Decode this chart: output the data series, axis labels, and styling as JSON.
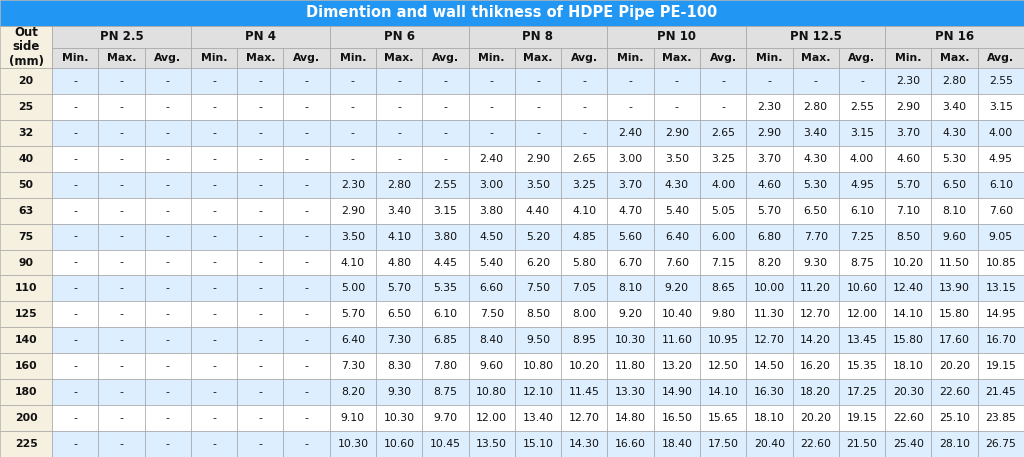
{
  "title": "Dimention and wall thikness of HDPE Pipe PE-100",
  "pn_labels": [
    "PN 2.5",
    "PN 4",
    "PN 6",
    "PN 8",
    "PN 10",
    "PN 12.5",
    "PN 16"
  ],
  "sub_cols": [
    "Min.",
    "Max.",
    "Avg."
  ],
  "rows": [
    [
      20,
      "-",
      "-",
      "-",
      "-",
      "-",
      "-",
      "-",
      "-",
      "-",
      "-",
      "-",
      "-",
      "-",
      "-",
      "-",
      "-",
      "-",
      "-",
      "2.30",
      "2.80",
      "2.55"
    ],
    [
      25,
      "-",
      "-",
      "-",
      "-",
      "-",
      "-",
      "-",
      "-",
      "-",
      "-",
      "-",
      "-",
      "-",
      "-",
      "-",
      "2.30",
      "2.80",
      "2.55",
      "2.90",
      "3.40",
      "3.15"
    ],
    [
      32,
      "-",
      "-",
      "-",
      "-",
      "-",
      "-",
      "-",
      "-",
      "-",
      "-",
      "-",
      "-",
      "2.40",
      "2.90",
      "2.65",
      "2.90",
      "3.40",
      "3.15",
      "3.70",
      "4.30",
      "4.00"
    ],
    [
      40,
      "-",
      "-",
      "-",
      "-",
      "-",
      "-",
      "-",
      "-",
      "-",
      "2.40",
      "2.90",
      "2.65",
      "3.00",
      "3.50",
      "3.25",
      "3.70",
      "4.30",
      "4.00",
      "4.60",
      "5.30",
      "4.95"
    ],
    [
      50,
      "-",
      "-",
      "-",
      "-",
      "-",
      "-",
      "2.30",
      "2.80",
      "2.55",
      "3.00",
      "3.50",
      "3.25",
      "3.70",
      "4.30",
      "4.00",
      "4.60",
      "5.30",
      "4.95",
      "5.70",
      "6.50",
      "6.10"
    ],
    [
      63,
      "-",
      "-",
      "-",
      "-",
      "-",
      "-",
      "2.90",
      "3.40",
      "3.15",
      "3.80",
      "4.40",
      "4.10",
      "4.70",
      "5.40",
      "5.05",
      "5.70",
      "6.50",
      "6.10",
      "7.10",
      "8.10",
      "7.60"
    ],
    [
      75,
      "-",
      "-",
      "-",
      "-",
      "-",
      "-",
      "3.50",
      "4.10",
      "3.80",
      "4.50",
      "5.20",
      "4.85",
      "5.60",
      "6.40",
      "6.00",
      "6.80",
      "7.70",
      "7.25",
      "8.50",
      "9.60",
      "9.05"
    ],
    [
      90,
      "-",
      "-",
      "-",
      "-",
      "-",
      "-",
      "4.10",
      "4.80",
      "4.45",
      "5.40",
      "6.20",
      "5.80",
      "6.70",
      "7.60",
      "7.15",
      "8.20",
      "9.30",
      "8.75",
      "10.20",
      "11.50",
      "10.85"
    ],
    [
      110,
      "-",
      "-",
      "-",
      "-",
      "-",
      "-",
      "5.00",
      "5.70",
      "5.35",
      "6.60",
      "7.50",
      "7.05",
      "8.10",
      "9.20",
      "8.65",
      "10.00",
      "11.20",
      "10.60",
      "12.40",
      "13.90",
      "13.15"
    ],
    [
      125,
      "-",
      "-",
      "-",
      "-",
      "-",
      "-",
      "5.70",
      "6.50",
      "6.10",
      "7.50",
      "8.50",
      "8.00",
      "9.20",
      "10.40",
      "9.80",
      "11.30",
      "12.70",
      "12.00",
      "14.10",
      "15.80",
      "14.95"
    ],
    [
      140,
      "-",
      "-",
      "-",
      "-",
      "-",
      "-",
      "6.40",
      "7.30",
      "6.85",
      "8.40",
      "9.50",
      "8.95",
      "10.30",
      "11.60",
      "10.95",
      "12.70",
      "14.20",
      "13.45",
      "15.80",
      "17.60",
      "16.70"
    ],
    [
      160,
      "-",
      "-",
      "-",
      "-",
      "-",
      "-",
      "7.30",
      "8.30",
      "7.80",
      "9.60",
      "10.80",
      "10.20",
      "11.80",
      "13.20",
      "12.50",
      "14.50",
      "16.20",
      "15.35",
      "18.10",
      "20.20",
      "19.15"
    ],
    [
      180,
      "-",
      "-",
      "-",
      "-",
      "-",
      "-",
      "8.20",
      "9.30",
      "8.75",
      "10.80",
      "12.10",
      "11.45",
      "13.30",
      "14.90",
      "14.10",
      "16.30",
      "18.20",
      "17.25",
      "20.30",
      "22.60",
      "21.45"
    ],
    [
      200,
      "-",
      "-",
      "-",
      "-",
      "-",
      "-",
      "9.10",
      "10.30",
      "9.70",
      "12.00",
      "13.40",
      "12.70",
      "14.80",
      "16.50",
      "15.65",
      "18.10",
      "20.20",
      "19.15",
      "22.60",
      "25.10",
      "23.85"
    ],
    [
      225,
      "-",
      "-",
      "-",
      "-",
      "-",
      "-",
      "10.30",
      "10.60",
      "10.45",
      "13.50",
      "15.10",
      "14.30",
      "16.60",
      "18.40",
      "17.50",
      "20.40",
      "22.60",
      "21.50",
      "25.40",
      "28.10",
      "26.75"
    ]
  ],
  "header_bg": "#2196F3",
  "header_text_color": "#ffffff",
  "pn_header_bg": "#e0e0e0",
  "pn_header_text": "#111111",
  "out_side_bg": "#f5f0e0",
  "out_side_text": "#111111",
  "row_bg_even": "#ddeeff",
  "row_bg_odd": "#ffffff",
  "border_color": "#999999",
  "text_color": "#111111",
  "title_fontsize": 10.5,
  "cell_fontsize": 7.8,
  "header_fontsize": 8.5
}
